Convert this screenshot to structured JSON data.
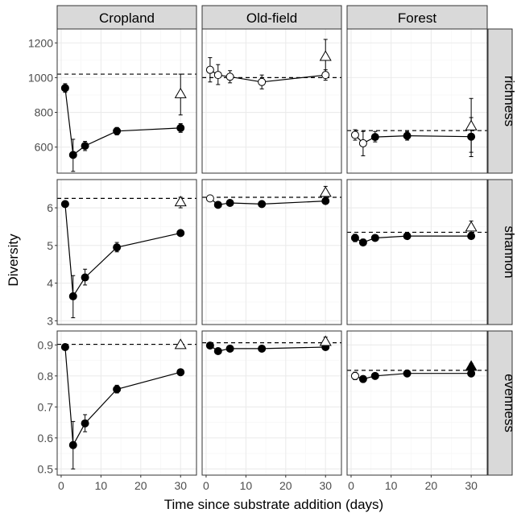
{
  "chart_data": {
    "type": "scatter",
    "facet_columns": [
      "Cropland",
      "Old-field",
      "Forest"
    ],
    "facet_rows": [
      "richness",
      "shannon",
      "evenness"
    ],
    "xlabel": "Time since substrate addition (days)",
    "ylabel": "Diversity",
    "x_ticks": [
      0,
      10,
      20,
      30
    ],
    "xlim": [
      -1,
      34
    ],
    "grid": true,
    "rows": [
      {
        "name": "richness",
        "ylim": [
          450,
          1280
        ],
        "y_ticks": [
          600,
          800,
          1000,
          1200
        ],
        "reference": {
          "Cropland": 1020,
          "Old-field": 1000,
          "Forest": 695
        },
        "panels": {
          "Cropland": {
            "points": [
              {
                "x": 1,
                "y": 940,
                "lo": 915,
                "hi": 965,
                "filled": true
              },
              {
                "x": 3,
                "y": 555,
                "lo": 460,
                "hi": 645,
                "filled": true
              },
              {
                "x": 6,
                "y": 607,
                "lo": 580,
                "hi": 633,
                "filled": true
              },
              {
                "x": 14,
                "y": 692,
                "lo": 670,
                "hi": 713,
                "filled": true
              },
              {
                "x": 30,
                "y": 710,
                "lo": 685,
                "hi": 735,
                "filled": true
              }
            ],
            "triangle": {
              "x": 30,
              "y": 905,
              "lo": 785,
              "hi": 1020,
              "filled": false
            }
          },
          "Old-field": {
            "points": [
              {
                "x": 1,
                "y": 1045,
                "lo": 975,
                "hi": 1115,
                "filled": false
              },
              {
                "x": 3,
                "y": 1015,
                "lo": 960,
                "hi": 1075,
                "filled": false
              },
              {
                "x": 6,
                "y": 1005,
                "lo": 970,
                "hi": 1040,
                "filled": false
              },
              {
                "x": 14,
                "y": 975,
                "lo": 935,
                "hi": 1015,
                "filled": false
              },
              {
                "x": 30,
                "y": 1015,
                "lo": 985,
                "hi": 1045,
                "filled": false
              }
            ],
            "triangle": {
              "x": 30,
              "y": 1120,
              "lo": 1030,
              "hi": 1220,
              "filled": false
            }
          },
          "Forest": {
            "points": [
              {
                "x": 1,
                "y": 670,
                "lo": 640,
                "hi": 700,
                "filled": false
              },
              {
                "x": 3,
                "y": 622,
                "lo": 550,
                "hi": 690,
                "filled": false
              },
              {
                "x": 6,
                "y": 658,
                "lo": 630,
                "hi": 690,
                "filled": true
              },
              {
                "x": 14,
                "y": 665,
                "lo": 640,
                "hi": 690,
                "filled": true
              },
              {
                "x": 30,
                "y": 660,
                "lo": 545,
                "hi": 770,
                "filled": true
              }
            ],
            "triangle": {
              "x": 30,
              "y": 720,
              "lo": 570,
              "hi": 880,
              "filled": false
            }
          }
        }
      },
      {
        "name": "shannon",
        "ylim": [
          2.9,
          6.75
        ],
        "y_ticks": [
          3,
          4,
          5,
          6
        ],
        "reference": {
          "Cropland": 6.25,
          "Old-field": 6.28,
          "Forest": 5.35
        },
        "panels": {
          "Cropland": {
            "points": [
              {
                "x": 1,
                "y": 6.1,
                "lo": 6.03,
                "hi": 6.17,
                "filled": true
              },
              {
                "x": 3,
                "y": 3.65,
                "lo": 3.08,
                "hi": 4.2,
                "filled": true
              },
              {
                "x": 6,
                "y": 4.15,
                "lo": 3.95,
                "hi": 4.37,
                "filled": true
              },
              {
                "x": 14,
                "y": 4.95,
                "lo": 4.83,
                "hi": 5.08,
                "filled": true
              },
              {
                "x": 30,
                "y": 5.33,
                "lo": 5.27,
                "hi": 5.39,
                "filled": true
              }
            ],
            "triangle": {
              "x": 30,
              "y": 6.15,
              "lo": 6.0,
              "hi": 6.28,
              "filled": false
            }
          },
          "Old-field": {
            "points": [
              {
                "x": 1,
                "y": 6.25,
                "lo": 6.2,
                "hi": 6.3,
                "filled": false
              },
              {
                "x": 3,
                "y": 6.08,
                "lo": 6.03,
                "hi": 6.13,
                "filled": true
              },
              {
                "x": 6,
                "y": 6.13,
                "lo": 6.08,
                "hi": 6.18,
                "filled": true
              },
              {
                "x": 14,
                "y": 6.1,
                "lo": 6.05,
                "hi": 6.15,
                "filled": true
              },
              {
                "x": 30,
                "y": 6.18,
                "lo": 6.13,
                "hi": 6.23,
                "filled": true
              }
            ],
            "triangle": {
              "x": 30,
              "y": 6.4,
              "lo": 6.28,
              "hi": 6.57,
              "filled": false
            }
          },
          "Forest": {
            "points": [
              {
                "x": 1,
                "y": 5.2,
                "lo": 5.1,
                "hi": 5.3,
                "filled": true
              },
              {
                "x": 3,
                "y": 5.08,
                "lo": 5.0,
                "hi": 5.17,
                "filled": true
              },
              {
                "x": 6,
                "y": 5.2,
                "lo": 5.13,
                "hi": 5.27,
                "filled": true
              },
              {
                "x": 14,
                "y": 5.25,
                "lo": 5.19,
                "hi": 5.31,
                "filled": true
              },
              {
                "x": 30,
                "y": 5.25,
                "lo": 5.19,
                "hi": 5.31,
                "filled": true
              }
            ],
            "triangle": {
              "x": 30,
              "y": 5.48,
              "lo": 5.35,
              "hi": 5.65,
              "filled": false
            }
          }
        }
      },
      {
        "name": "evenness",
        "ylim": [
          0.48,
          0.945
        ],
        "y_ticks": [
          0.5,
          0.6,
          0.7,
          0.8,
          0.9
        ],
        "reference": {
          "Cropland": 0.902,
          "Old-field": 0.907,
          "Forest": 0.818
        },
        "panels": {
          "Cropland": {
            "points": [
              {
                "x": 1,
                "y": 0.893,
                "lo": 0.885,
                "hi": 0.9,
                "filled": true
              },
              {
                "x": 3,
                "y": 0.577,
                "lo": 0.5,
                "hi": 0.653,
                "filled": true
              },
              {
                "x": 6,
                "y": 0.647,
                "lo": 0.62,
                "hi": 0.675,
                "filled": true
              },
              {
                "x": 14,
                "y": 0.757,
                "lo": 0.745,
                "hi": 0.77,
                "filled": true
              },
              {
                "x": 30,
                "y": 0.812,
                "lo": 0.805,
                "hi": 0.818,
                "filled": true
              }
            ],
            "triangle": {
              "x": 30,
              "y": 0.9,
              "lo": 0.895,
              "hi": 0.905,
              "filled": false
            }
          },
          "Old-field": {
            "points": [
              {
                "x": 1,
                "y": 0.898,
                "lo": 0.893,
                "hi": 0.903,
                "filled": true
              },
              {
                "x": 3,
                "y": 0.88,
                "lo": 0.875,
                "hi": 0.885,
                "filled": true
              },
              {
                "x": 6,
                "y": 0.888,
                "lo": 0.883,
                "hi": 0.893,
                "filled": true
              },
              {
                "x": 14,
                "y": 0.888,
                "lo": 0.883,
                "hi": 0.893,
                "filled": true
              },
              {
                "x": 30,
                "y": 0.893,
                "lo": 0.888,
                "hi": 0.898,
                "filled": true
              }
            ],
            "triangle": {
              "x": 30,
              "y": 0.91,
              "lo": 0.9,
              "hi": 0.925,
              "filled": false
            }
          },
          "Forest": {
            "points": [
              {
                "x": 1,
                "y": 0.8,
                "lo": 0.788,
                "hi": 0.812,
                "filled": false
              },
              {
                "x": 3,
                "y": 0.79,
                "lo": 0.78,
                "hi": 0.8,
                "filled": true
              },
              {
                "x": 6,
                "y": 0.8,
                "lo": 0.793,
                "hi": 0.807,
                "filled": true
              },
              {
                "x": 14,
                "y": 0.808,
                "lo": 0.802,
                "hi": 0.814,
                "filled": true
              },
              {
                "x": 30,
                "y": 0.808,
                "lo": 0.802,
                "hi": 0.814,
                "filled": true
              }
            ],
            "triangle": {
              "x": 30,
              "y": 0.83,
              "lo": 0.82,
              "hi": 0.84,
              "filled": true
            }
          }
        }
      }
    ]
  },
  "colors": {
    "panel_border": "#333333",
    "strip_fill": "#d9d9d9",
    "grid_major": "#ebebeb",
    "grid_minor": "#f5f5f5",
    "marker": "#000000",
    "text": "#000000",
    "tick_text": "#4d4d4d"
  }
}
